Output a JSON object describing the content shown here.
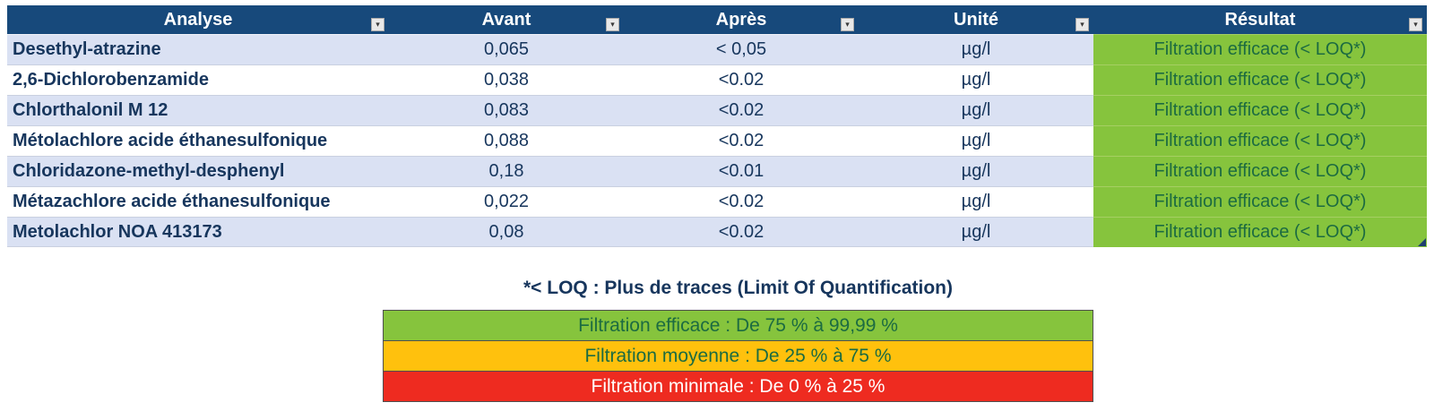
{
  "colors": {
    "header_bg": "#17497B",
    "row_alt_bg": "#DAE1F3",
    "navy_text": "#17365D",
    "green_cell_bg": "#86C43D",
    "green_cell_text": "#1C6B41"
  },
  "table": {
    "columns": [
      {
        "label": "Analyse"
      },
      {
        "label": "Avant"
      },
      {
        "label": "Après"
      },
      {
        "label": "Unité"
      },
      {
        "label": "Résultat"
      }
    ],
    "rows": [
      {
        "analyse": "Desethyl-atrazine",
        "avant": "0,065",
        "apres": "< 0,05",
        "unite": "µg/l",
        "resultat": "Filtration efficace (< LOQ*)"
      },
      {
        "analyse": "2,6-Dichlorobenzamide",
        "avant": "0,038",
        "apres": "<0.02",
        "unite": "µg/l",
        "resultat": "Filtration efficace (< LOQ*)"
      },
      {
        "analyse": "Chlorthalonil M 12",
        "avant": "0,083",
        "apres": "<0.02",
        "unite": "µg/l",
        "resultat": "Filtration efficace (< LOQ*)"
      },
      {
        "analyse": "Métolachlore acide éthanesulfonique",
        "avant": "0,088",
        "apres": "<0.02",
        "unite": "µg/l",
        "resultat": "Filtration efficace (< LOQ*)"
      },
      {
        "analyse": "Chloridazone-methyl-desphenyl",
        "avant": "0,18",
        "apres": "<0.01",
        "unite": "µg/l",
        "resultat": "Filtration efficace (< LOQ*)"
      },
      {
        "analyse": "Métazachlore acide éthanesulfonique",
        "avant": "0,022",
        "apres": "<0.02",
        "unite": "µg/l",
        "resultat": "Filtration efficace (< LOQ*)"
      },
      {
        "analyse": "Metolachlor NOA 413173",
        "avant": "0,08",
        "apres": "<0.02",
        "unite": "µg/l",
        "resultat": "Filtration efficace (< LOQ*)"
      }
    ]
  },
  "note": "*< LOQ : Plus de traces (Limit Of Quantification)",
  "legend": [
    {
      "label": "Filtration efficace : De 75 % à 99,99 %",
      "color": "#86C43D",
      "text_color": "#1C6B41"
    },
    {
      "label": "Filtration moyenne : De 25 % à 75 %",
      "color": "#FFC10D",
      "text_color": "#1C6B41"
    },
    {
      "label": "Filtration minimale : De 0 % à 25 %",
      "color": "#EE2B20",
      "text_color": "#FFFFFF"
    }
  ],
  "filter_icon": "▾"
}
